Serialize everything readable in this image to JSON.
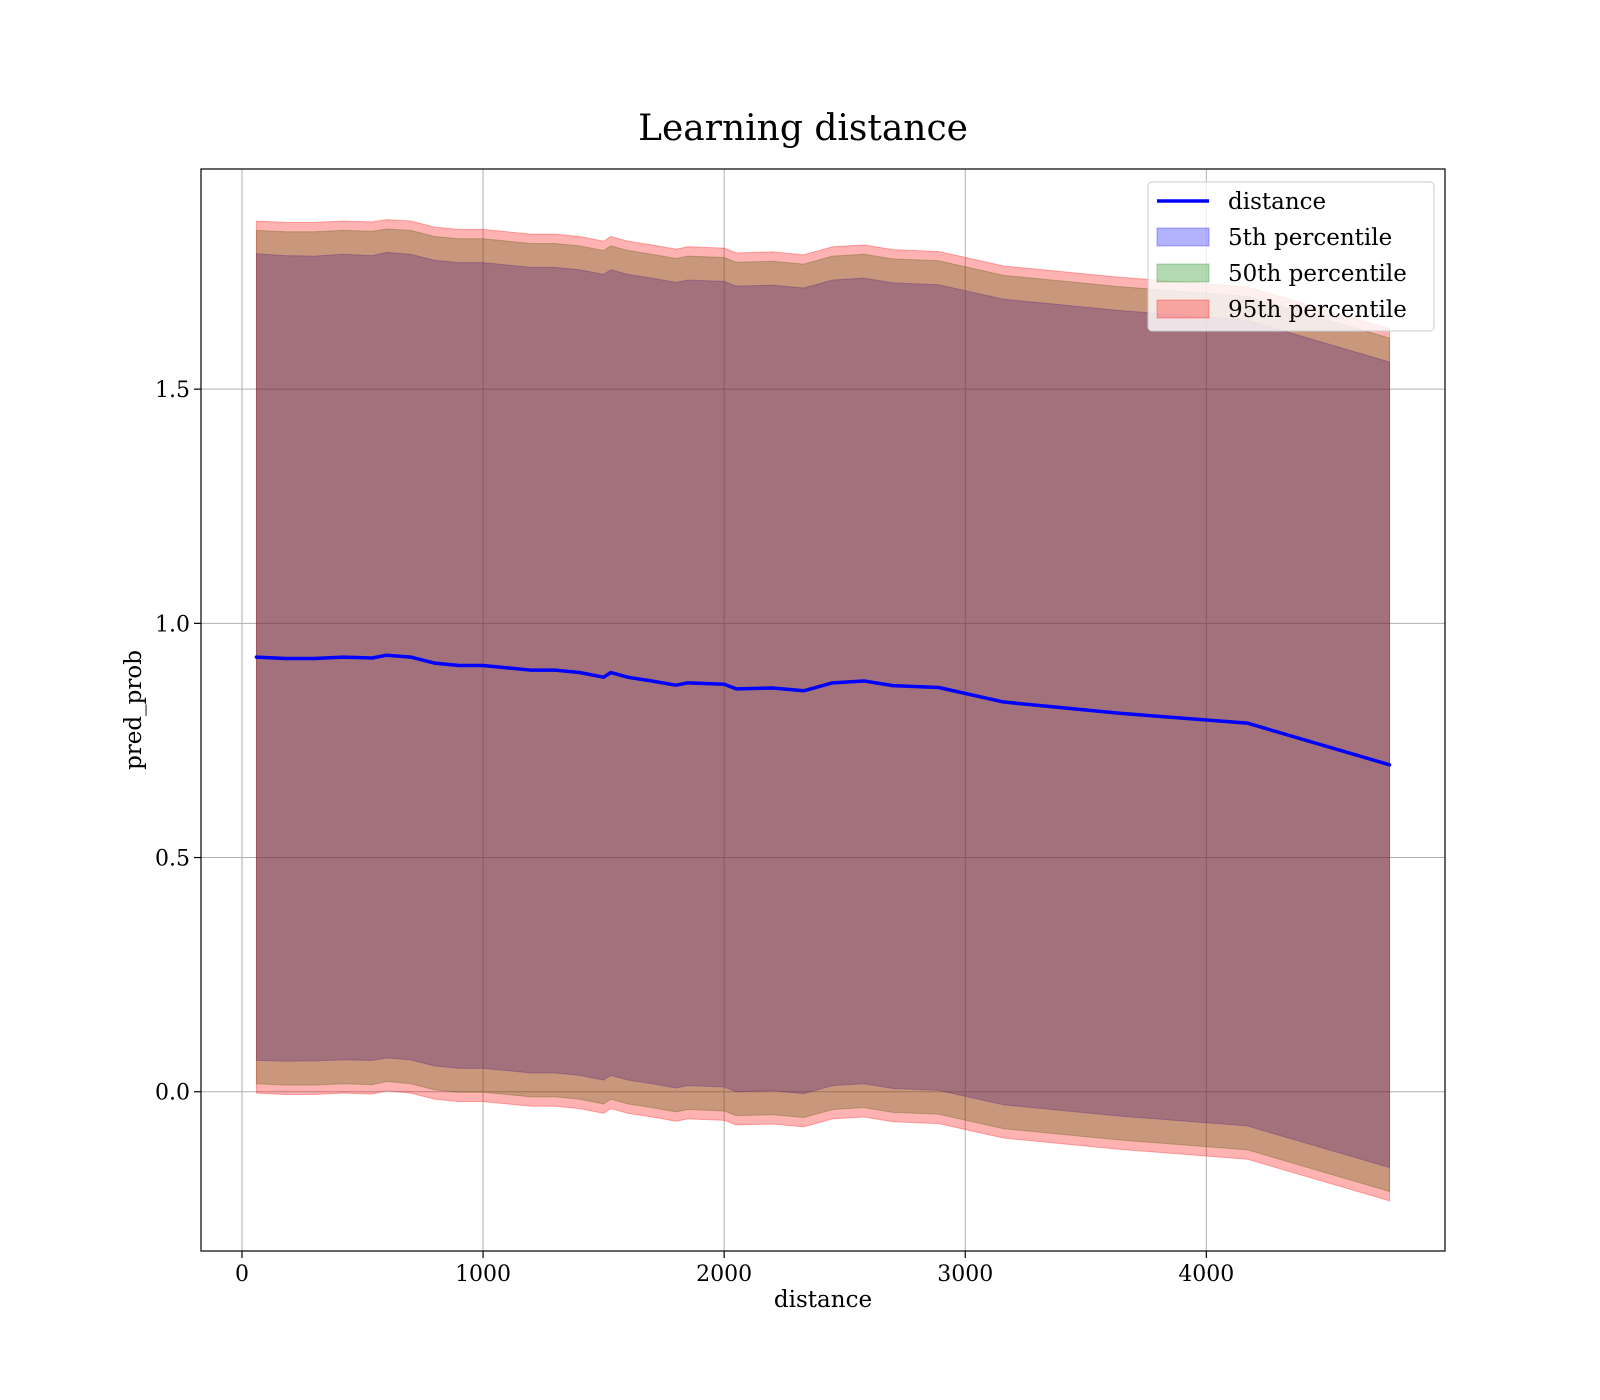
{
  "chart_data": {
    "type": "area",
    "title": "Learning distance",
    "xlabel": "distance",
    "ylabel": "pred_prob",
    "xlim": [
      -170,
      4990
    ],
    "ylim": [
      -0.34,
      1.97
    ],
    "xticks": [
      0,
      1000,
      2000,
      3000,
      4000
    ],
    "xtick_labels": [
      "0",
      "1000",
      "2000",
      "3000",
      "4000"
    ],
    "yticks": [
      0.0,
      0.5,
      1.0,
      1.5
    ],
    "ytick_labels": [
      "0.0",
      "0.5",
      "1.0",
      "1.5"
    ],
    "grid": true,
    "legend_position": "top-right",
    "x": [
      60,
      180,
      300,
      420,
      540,
      600,
      700,
      800,
      900,
      1000,
      1100,
      1200,
      1300,
      1400,
      1500,
      1530,
      1600,
      1700,
      1800,
      1850,
      2000,
      2050,
      2200,
      2330,
      2450,
      2580,
      2700,
      2890,
      3160,
      3640,
      4170,
      4760
    ],
    "series": [
      {
        "name": "distance",
        "kind": "line",
        "color": "#0000ff",
        "values": [
          0.928,
          0.925,
          0.925,
          0.928,
          0.926,
          0.932,
          0.928,
          0.915,
          0.91,
          0.91,
          0.905,
          0.9,
          0.9,
          0.895,
          0.885,
          0.895,
          0.885,
          0.877,
          0.868,
          0.873,
          0.87,
          0.86,
          0.862,
          0.856,
          0.873,
          0.877,
          0.867,
          0.863,
          0.832,
          0.808,
          0.787,
          0.698
        ]
      },
      {
        "name": "5th percentile",
        "kind": "band",
        "color": "#0000ff",
        "opacity": 0.3,
        "lower": [
          0.067,
          0.065,
          0.066,
          0.068,
          0.067,
          0.072,
          0.068,
          0.055,
          0.05,
          0.05,
          0.045,
          0.04,
          0.04,
          0.035,
          0.025,
          0.035,
          0.025,
          0.017,
          0.008,
          0.013,
          0.01,
          0.0,
          0.002,
          -0.004,
          0.013,
          0.017,
          0.007,
          0.003,
          -0.028,
          -0.052,
          -0.073,
          -0.162
        ],
        "upper": [
          1.789,
          1.785,
          1.784,
          1.788,
          1.785,
          1.792,
          1.788,
          1.775,
          1.77,
          1.77,
          1.765,
          1.76,
          1.76,
          1.755,
          1.745,
          1.755,
          1.745,
          1.737,
          1.728,
          1.733,
          1.73,
          1.72,
          1.722,
          1.716,
          1.733,
          1.737,
          1.727,
          1.723,
          1.692,
          1.668,
          1.647,
          1.558
        ]
      },
      {
        "name": "50th percentile",
        "kind": "band",
        "color": "#008000",
        "opacity": 0.3,
        "lower": [
          0.017,
          0.014,
          0.014,
          0.017,
          0.015,
          0.022,
          0.017,
          0.004,
          -0.001,
          -0.001,
          -0.006,
          -0.011,
          -0.011,
          -0.016,
          -0.026,
          -0.016,
          -0.026,
          -0.034,
          -0.043,
          -0.038,
          -0.041,
          -0.051,
          -0.049,
          -0.055,
          -0.038,
          -0.034,
          -0.044,
          -0.048,
          -0.079,
          -0.103,
          -0.124,
          -0.213
        ],
        "upper": [
          1.839,
          1.836,
          1.836,
          1.839,
          1.837,
          1.842,
          1.839,
          1.826,
          1.821,
          1.821,
          1.816,
          1.811,
          1.811,
          1.806,
          1.796,
          1.806,
          1.796,
          1.788,
          1.779,
          1.784,
          1.781,
          1.771,
          1.773,
          1.767,
          1.784,
          1.788,
          1.778,
          1.774,
          1.743,
          1.719,
          1.698,
          1.609
        ]
      },
      {
        "name": "95th percentile",
        "kind": "band",
        "color": "#ff0000",
        "opacity": 0.3,
        "lower": [
          -0.003,
          -0.006,
          -0.006,
          -0.003,
          -0.005,
          0.002,
          -0.003,
          -0.016,
          -0.021,
          -0.021,
          -0.026,
          -0.031,
          -0.031,
          -0.036,
          -0.046,
          -0.036,
          -0.046,
          -0.054,
          -0.063,
          -0.058,
          -0.061,
          -0.071,
          -0.069,
          -0.075,
          -0.058,
          -0.054,
          -0.064,
          -0.068,
          -0.099,
          -0.123,
          -0.144,
          -0.233
        ],
        "upper": [
          1.859,
          1.856,
          1.856,
          1.859,
          1.857,
          1.862,
          1.859,
          1.846,
          1.841,
          1.841,
          1.836,
          1.831,
          1.831,
          1.826,
          1.816,
          1.826,
          1.816,
          1.808,
          1.799,
          1.804,
          1.801,
          1.791,
          1.793,
          1.787,
          1.804,
          1.808,
          1.798,
          1.794,
          1.763,
          1.739,
          1.718,
          1.629
        ]
      }
    ]
  }
}
